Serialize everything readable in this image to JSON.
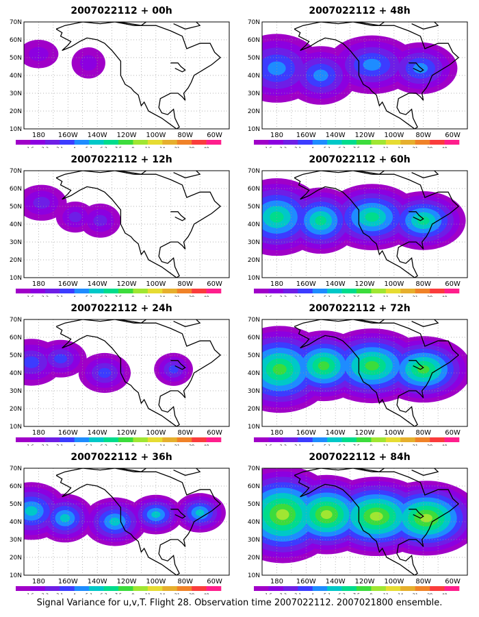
{
  "panels": [
    {
      "title": "2007022112 + 00h",
      "spread": 0.25,
      "intensity": 0.6,
      "variant": "a"
    },
    {
      "title": "2007022112 + 12h",
      "spread": 0.45,
      "intensity": 1.1,
      "variant": "b"
    },
    {
      "title": "2007022112 + 24h",
      "spread": 0.65,
      "intensity": 1.6,
      "variant": "c"
    },
    {
      "title": "2007022112 + 36h",
      "spread": 0.85,
      "intensity": 2.2,
      "variant": "d"
    },
    {
      "title": "2007022112 + 48h",
      "spread": 0.95,
      "intensity": 2.0,
      "variant": "e"
    },
    {
      "title": "2007022112 + 60h",
      "spread": 1.05,
      "intensity": 2.6,
      "variant": "f"
    },
    {
      "title": "2007022112 + 72h",
      "spread": 1.15,
      "intensity": 3.0,
      "variant": "g"
    },
    {
      "title": "2007022112 + 84h",
      "spread": 1.25,
      "intensity": 3.4,
      "variant": "h"
    }
  ],
  "axes": {
    "lat_labels": [
      "70N",
      "60N",
      "50N",
      "40N",
      "30N",
      "20N",
      "10N"
    ],
    "lon_labels": [
      "180",
      "160W",
      "140W",
      "120W",
      "100W",
      "80W",
      "60W"
    ]
  },
  "colorbar": {
    "labels": [
      "1.6",
      "2.2",
      "3.1",
      "4",
      "5.1",
      "6.3",
      "7.5",
      "9",
      "11",
      "14",
      "21",
      "29",
      "40"
    ],
    "colors": [
      "#a000c8",
      "#8c00e0",
      "#6e1ee6",
      "#3c3cff",
      "#1e8cff",
      "#00c8c8",
      "#00dc8c",
      "#3cdc3c",
      "#a0e632",
      "#e6dc32",
      "#e6af2d",
      "#f08228",
      "#fa3c3c",
      "#ff1e8c"
    ]
  },
  "caption": "Signal Variance for u,v,T. Flight 28. Observation time 2007022112. 2007021800 ensemble."
}
